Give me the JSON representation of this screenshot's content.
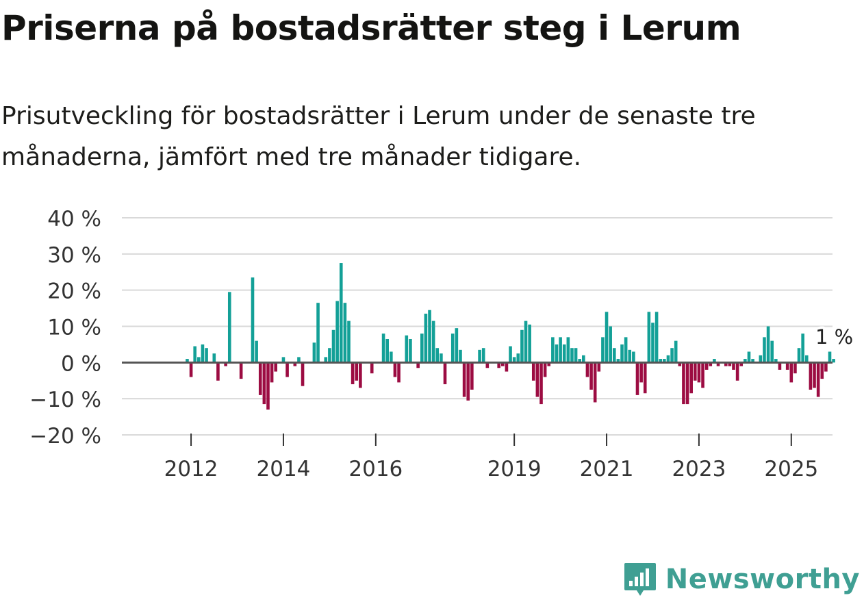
{
  "header": {
    "title": "Priserna på bostadsrätter steg i Lerum",
    "subtitle": "Prisutveckling för bostadsrätter i Lerum under de senaste tre månaderna, jämfört med tre månader tidigare."
  },
  "brand": {
    "name": "Newsworthy",
    "color": "#3f9f93"
  },
  "colors": {
    "positive": "#13a097",
    "negative": "#9c0c42",
    "grid": "#d9d9d9",
    "zero": "#555555",
    "text": "#333333"
  },
  "chart_data": {
    "type": "bar",
    "title": "Priserna på bostadsrätter steg i Lerum",
    "xlabel": "",
    "ylabel": "",
    "ylim": [
      -20,
      40
    ],
    "y_ticks": [
      -20,
      -10,
      0,
      10,
      20,
      30,
      40
    ],
    "y_tick_labels": [
      "−20 %",
      "−10 %",
      "0 %",
      "10 %",
      "20 %",
      "30 %",
      "40 %"
    ],
    "x_start": {
      "year": 2011,
      "month": 4
    },
    "x_ticks": [
      {
        "year": 2012,
        "month": 1,
        "label": "2012"
      },
      {
        "year": 2014,
        "month": 1,
        "label": "2014"
      },
      {
        "year": 2016,
        "month": 1,
        "label": "2016"
      },
      {
        "year": 2019,
        "month": 1,
        "label": "2019"
      },
      {
        "year": 2021,
        "month": 1,
        "label": "2021"
      },
      {
        "year": 2023,
        "month": 1,
        "label": "2023"
      },
      {
        "year": 2025,
        "month": 1,
        "label": "2025"
      }
    ],
    "last_value_label": "1 %",
    "series": [
      {
        "name": "Prisutveckling",
        "values": [
          0,
          0,
          0,
          0,
          0,
          0,
          0,
          0,
          1,
          -4,
          4.5,
          1.5,
          5,
          4,
          0,
          2.5,
          -5,
          0,
          -1,
          19.5,
          0,
          0,
          -4.5,
          0,
          0,
          23.5,
          6,
          -9,
          -11.5,
          -13,
          -5.5,
          -2.5,
          0,
          1.5,
          -4,
          0,
          -1,
          1.5,
          -6.5,
          0,
          0,
          5.5,
          16.5,
          0,
          1.5,
          4,
          9,
          17,
          27.5,
          16.5,
          11.5,
          -6,
          -5,
          -7,
          0,
          0,
          -3,
          0,
          0,
          8,
          6.5,
          3,
          -4,
          -5.5,
          0,
          7.5,
          6.5,
          0,
          -1.5,
          8,
          13.5,
          14.5,
          11.5,
          4,
          2.5,
          -6,
          0,
          8,
          9.5,
          3.5,
          -9.5,
          -10.5,
          -7.5,
          0,
          3.5,
          4,
          -1.5,
          0,
          0,
          -1.5,
          -1,
          -2.5,
          4.5,
          1.5,
          2.5,
          9,
          11.5,
          10.5,
          -5,
          -9.5,
          -11.5,
          -4,
          -1,
          7,
          5,
          7,
          5,
          7,
          4,
          4,
          1,
          2,
          -4,
          -7.5,
          -11,
          -2.5,
          7,
          14,
          10,
          4,
          1,
          5,
          7,
          3.5,
          3,
          -9,
          -5.5,
          -8.5,
          14,
          11,
          14,
          1,
          1,
          2,
          4,
          6,
          -1,
          -11.5,
          -11.5,
          -8.5,
          -5,
          -5.5,
          -7,
          -2,
          -1,
          1,
          -1,
          0,
          -1,
          -1,
          -2,
          -5,
          -1,
          1,
          3,
          1,
          0,
          2,
          7,
          10,
          6,
          1,
          -2,
          0,
          -2,
          -5.5,
          -3,
          4,
          8,
          2,
          -7.5,
          -7,
          -9.5,
          -4.5,
          -2.5,
          3,
          1
        ]
      }
    ]
  }
}
